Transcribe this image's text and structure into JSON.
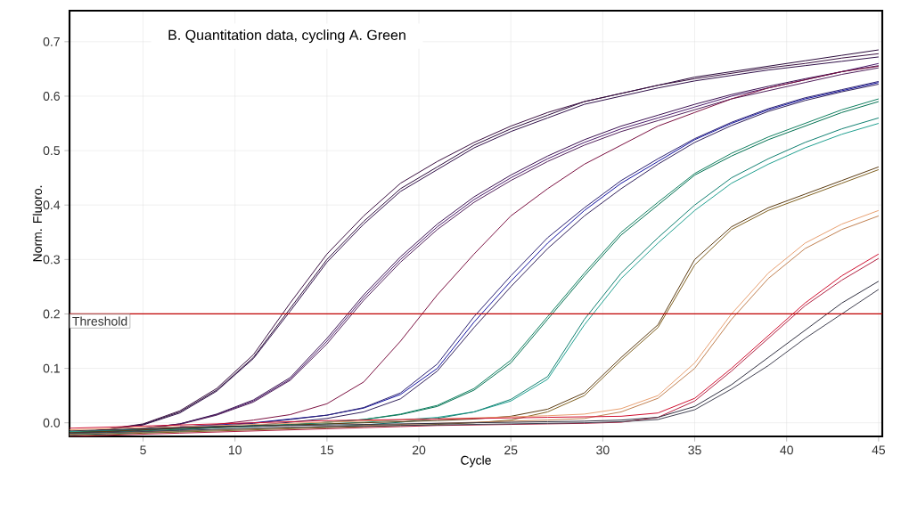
{
  "chart_data": {
    "type": "line",
    "title": "B.  Quantitation data, cycling A. Green",
    "xlabel": "Cycle",
    "ylabel": "Norm. Fluoro.",
    "x": [
      1,
      3,
      5,
      7,
      9,
      11,
      13,
      15,
      17,
      19,
      21,
      23,
      25,
      27,
      29,
      31,
      33,
      35,
      37,
      39,
      41,
      43,
      45
    ],
    "xlim": [
      1,
      45.2
    ],
    "ylim": [
      -0.025,
      0.757
    ],
    "xticks": [
      5,
      10,
      15,
      20,
      25,
      30,
      35,
      40,
      45
    ],
    "yticks": [
      {
        "value": 0,
        "label": "0.0"
      },
      0.1,
      0.2,
      0.3,
      0.4,
      0.5,
      0.6,
      0.7
    ],
    "grid": true,
    "ref_lines": [
      {
        "axis": "y",
        "value": 0.2,
        "label": "Threshold",
        "color": "#c00000"
      }
    ],
    "series": [
      {
        "color": "#2a0a3a",
        "values": [
          -0.02,
          -0.012,
          -0.003,
          0.02,
          0.06,
          0.12,
          0.21,
          0.3,
          0.37,
          0.43,
          0.47,
          0.51,
          0.54,
          0.565,
          0.59,
          0.605,
          0.62,
          0.635,
          0.645,
          0.655,
          0.665,
          0.675,
          0.685
        ]
      },
      {
        "color": "#3a1040",
        "values": [
          -0.02,
          -0.012,
          -0.002,
          0.022,
          0.063,
          0.125,
          0.22,
          0.31,
          0.38,
          0.44,
          0.48,
          0.515,
          0.545,
          0.57,
          0.59,
          0.605,
          0.62,
          0.632,
          0.642,
          0.652,
          0.66,
          0.67,
          0.678
        ]
      },
      {
        "color": "#301048",
        "values": [
          -0.02,
          -0.013,
          -0.004,
          0.018,
          0.058,
          0.118,
          0.205,
          0.295,
          0.365,
          0.425,
          0.465,
          0.505,
          0.535,
          0.56,
          0.585,
          0.6,
          0.615,
          0.628,
          0.638,
          0.648,
          0.656,
          0.664,
          0.672
        ]
      },
      {
        "color": "#4a1a6a",
        "values": [
          -0.02,
          -0.015,
          -0.01,
          -0.002,
          0.015,
          0.04,
          0.08,
          0.15,
          0.23,
          0.3,
          0.36,
          0.41,
          0.45,
          0.485,
          0.515,
          0.54,
          0.56,
          0.58,
          0.6,
          0.615,
          0.63,
          0.645,
          0.66
        ]
      },
      {
        "color": "#3a1050",
        "values": [
          -0.02,
          -0.015,
          -0.01,
          -0.002,
          0.016,
          0.042,
          0.083,
          0.155,
          0.235,
          0.305,
          0.365,
          0.415,
          0.455,
          0.49,
          0.52,
          0.545,
          0.565,
          0.585,
          0.603,
          0.618,
          0.632,
          0.645,
          0.656
        ]
      },
      {
        "color": "#50205a",
        "values": [
          -0.02,
          -0.015,
          -0.011,
          -0.003,
          0.014,
          0.038,
          0.078,
          0.145,
          0.225,
          0.295,
          0.355,
          0.405,
          0.445,
          0.48,
          0.51,
          0.535,
          0.555,
          0.575,
          0.595,
          0.61,
          0.625,
          0.64,
          0.652
        ]
      },
      {
        "color": "#7a1040",
        "values": [
          -0.02,
          -0.016,
          -0.012,
          -0.008,
          -0.003,
          0.005,
          0.015,
          0.035,
          0.075,
          0.15,
          0.235,
          0.31,
          0.38,
          0.43,
          0.475,
          0.51,
          0.545,
          0.57,
          0.595,
          0.615,
          0.63,
          0.645,
          0.655
        ]
      },
      {
        "color": "#1010a0",
        "values": [
          null,
          null,
          null,
          -0.007,
          -0.004,
          0.0,
          0.007,
          0.014,
          0.027,
          0.052,
          0.1,
          0.185,
          0.26,
          0.33,
          0.39,
          0.44,
          0.48,
          0.52,
          0.55,
          0.575,
          0.595,
          0.61,
          0.625
        ]
      },
      {
        "color": "#2a2070",
        "values": [
          -0.02,
          -0.017,
          -0.014,
          -0.01,
          -0.006,
          -0.001,
          0.006,
          0.014,
          0.028,
          0.055,
          0.108,
          0.195,
          0.27,
          0.34,
          0.395,
          0.445,
          0.485,
          0.522,
          0.552,
          0.577,
          0.597,
          0.612,
          0.627
        ]
      },
      {
        "color": "#30205a",
        "values": [
          -0.023,
          -0.02,
          -0.017,
          -0.013,
          -0.009,
          -0.005,
          0.001,
          0.008,
          0.02,
          0.044,
          0.095,
          0.175,
          0.25,
          0.32,
          0.38,
          0.43,
          0.475,
          0.515,
          0.546,
          0.572,
          0.592,
          0.608,
          0.622
        ]
      },
      {
        "color": "#007050",
        "values": [
          -0.017,
          -0.015,
          -0.012,
          -0.01,
          -0.007,
          -0.005,
          -0.003,
          0.001,
          0.006,
          0.015,
          0.03,
          0.06,
          0.11,
          0.19,
          0.27,
          0.345,
          0.4,
          0.455,
          0.49,
          0.52,
          0.545,
          0.57,
          0.59
        ]
      },
      {
        "color": "#108060",
        "values": [
          -0.02,
          -0.018,
          -0.015,
          -0.012,
          -0.009,
          -0.007,
          -0.004,
          0.001,
          0.006,
          0.016,
          0.032,
          0.063,
          0.115,
          0.195,
          0.275,
          0.35,
          0.405,
          0.458,
          0.495,
          0.525,
          0.55,
          0.575,
          0.595
        ]
      },
      {
        "color": "#20a090",
        "values": [
          -0.016,
          -0.014,
          -0.012,
          -0.01,
          -0.008,
          -0.006,
          -0.004,
          -0.002,
          0.001,
          0.005,
          0.01,
          0.02,
          0.04,
          0.08,
          0.18,
          0.265,
          0.33,
          0.39,
          0.44,
          0.475,
          0.505,
          0.53,
          0.55
        ]
      },
      {
        "color": "#108070",
        "values": [
          -0.022,
          -0.02,
          -0.018,
          -0.016,
          -0.013,
          -0.011,
          -0.009,
          -0.007,
          -0.004,
          0.001,
          0.008,
          0.02,
          0.043,
          0.085,
          0.19,
          0.275,
          0.34,
          0.4,
          0.45,
          0.485,
          0.515,
          0.54,
          0.56
        ]
      },
      {
        "color": "#5a3a10",
        "values": [
          -0.018,
          -0.016,
          -0.013,
          -0.01,
          -0.008,
          -0.006,
          -0.004,
          -0.002,
          0.0,
          0.002,
          0.004,
          0.007,
          0.012,
          0.025,
          0.055,
          0.12,
          0.18,
          0.3,
          0.36,
          0.395,
          0.42,
          0.445,
          0.47
        ]
      },
      {
        "color": "#806020",
        "values": [
          -0.024,
          -0.022,
          -0.019,
          -0.017,
          -0.015,
          -0.013,
          -0.011,
          -0.009,
          -0.007,
          -0.005,
          -0.003,
          0.0,
          0.005,
          0.02,
          0.05,
          0.115,
          0.175,
          0.29,
          0.355,
          0.39,
          0.415,
          0.44,
          0.465
        ]
      },
      {
        "color": "#e8a070",
        "values": [
          -0.013,
          -0.011,
          -0.009,
          -0.007,
          -0.005,
          -0.003,
          -0.001,
          0.001,
          0.003,
          0.005,
          0.007,
          0.009,
          0.011,
          0.013,
          0.016,
          0.026,
          0.05,
          0.11,
          0.2,
          0.275,
          0.33,
          0.365,
          0.39
        ]
      },
      {
        "color": "#c08050",
        "values": [
          -0.021,
          -0.019,
          -0.017,
          -0.015,
          -0.013,
          -0.011,
          -0.009,
          -0.007,
          -0.005,
          -0.003,
          -0.001,
          0.001,
          0.003,
          0.005,
          0.008,
          0.02,
          0.045,
          0.1,
          0.19,
          0.265,
          0.32,
          0.355,
          0.38
        ]
      },
      {
        "color": "#d01030",
        "values": [
          -0.01,
          -0.008,
          -0.006,
          -0.004,
          -0.002,
          0.0,
          0.002,
          0.004,
          0.005,
          0.006,
          0.007,
          0.008,
          0.009,
          0.01,
          0.011,
          0.012,
          0.018,
          0.045,
          0.1,
          0.16,
          0.22,
          0.27,
          0.31
        ]
      },
      {
        "color": "#b02040",
        "values": [
          -0.025,
          -0.023,
          -0.021,
          -0.019,
          -0.017,
          -0.015,
          -0.013,
          -0.011,
          -0.009,
          -0.007,
          -0.005,
          -0.004,
          -0.003,
          -0.002,
          -0.001,
          0.001,
          0.01,
          0.04,
          0.095,
          0.155,
          0.215,
          0.262,
          0.302
        ]
      },
      {
        "color": "#303040",
        "values": [
          -0.015,
          -0.013,
          -0.011,
          -0.009,
          -0.007,
          -0.006,
          -0.005,
          -0.004,
          -0.003,
          -0.002,
          -0.001,
          0.0,
          0.001,
          0.002,
          0.003,
          0.005,
          0.01,
          0.03,
          0.07,
          0.12,
          0.17,
          0.22,
          0.26
        ]
      },
      {
        "color": "#404050",
        "values": [
          -0.019,
          -0.018,
          -0.016,
          -0.014,
          -0.012,
          -0.01,
          -0.008,
          -0.007,
          -0.006,
          -0.005,
          -0.004,
          -0.003,
          -0.002,
          -0.001,
          0.0,
          0.002,
          0.006,
          0.024,
          0.062,
          0.105,
          0.155,
          0.2,
          0.245
        ]
      }
    ]
  }
}
